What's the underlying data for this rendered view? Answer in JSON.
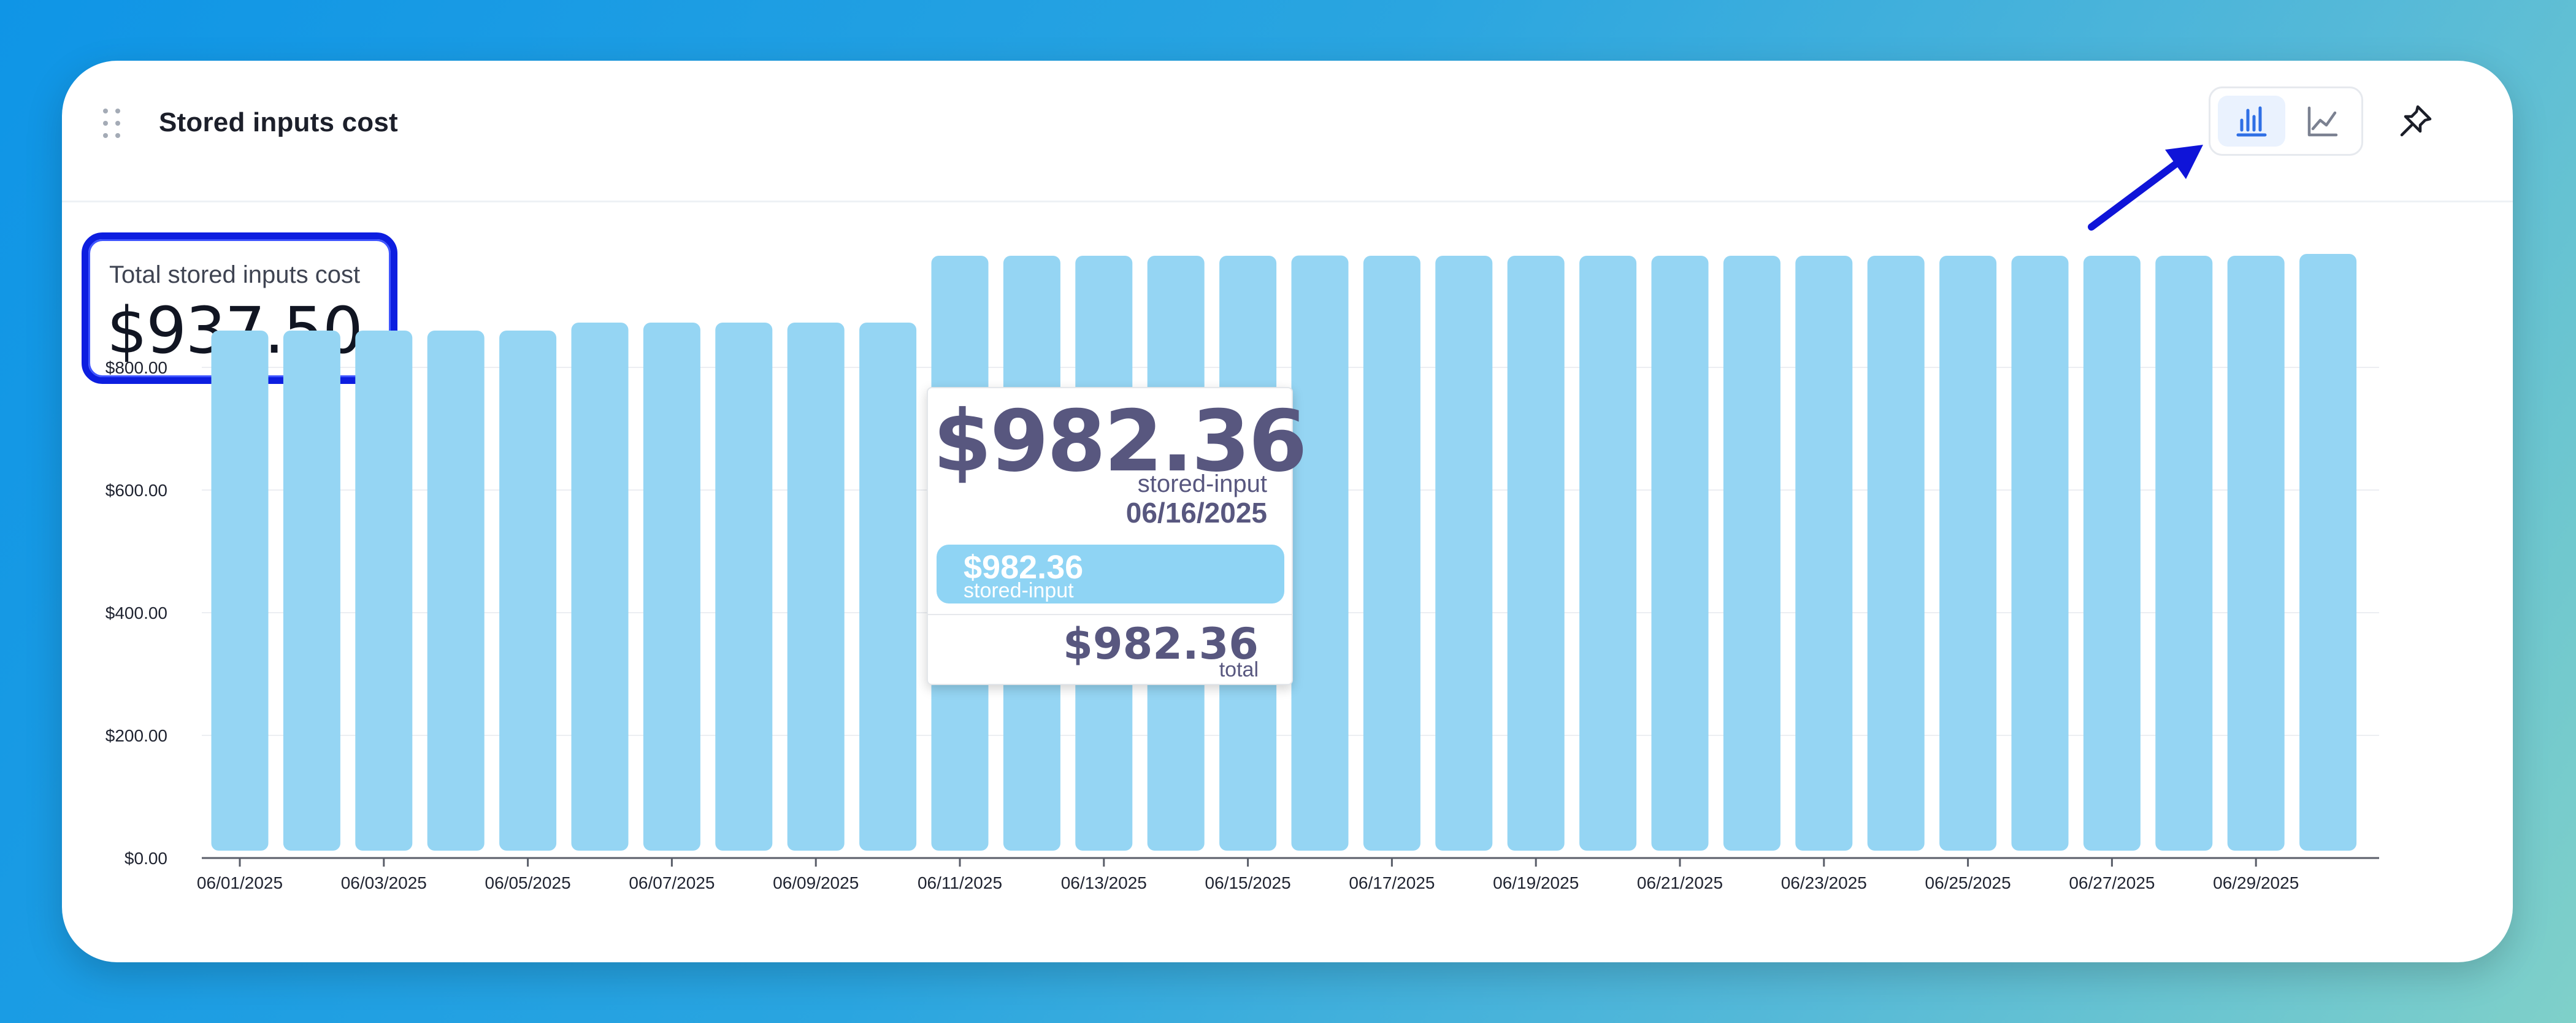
{
  "header": {
    "title": "Stored inputs cost",
    "drag_icon": "drag-handle-icon",
    "bar_chart_icon": "bar-chart-icon",
    "line_chart_icon": "line-chart-icon",
    "pin_icon": "pin-icon",
    "active_view": "bar"
  },
  "kpi": {
    "label": "Total stored inputs cost",
    "value": "$937.50"
  },
  "tooltip": {
    "value": "$982.36",
    "series": "stored-input",
    "date": "06/16/2025",
    "pill_value": "$982.36",
    "pill_series": "stored-input",
    "total_value": "$982.36",
    "total_label": "total"
  },
  "colors": {
    "bar": "#95d5f3",
    "tooltip_text": "#58577f",
    "highlight_border": "#0d1ee0",
    "active_icon": "#2f6fe5"
  },
  "chart_data": {
    "type": "bar",
    "categories": [
      "06/01/2025",
      "06/02/2025",
      "06/03/2025",
      "06/04/2025",
      "06/05/2025",
      "06/06/2025",
      "06/07/2025",
      "06/08/2025",
      "06/09/2025",
      "06/10/2025",
      "06/11/2025",
      "06/12/2025",
      "06/13/2025",
      "06/14/2025",
      "06/15/2025",
      "06/16/2025",
      "06/17/2025",
      "06/18/2025",
      "06/19/2025",
      "06/20/2025",
      "06/21/2025",
      "06/22/2025",
      "06/23/2025",
      "06/24/2025",
      "06/25/2025",
      "06/26/2025",
      "06/27/2025",
      "06/28/2025",
      "06/29/2025",
      "06/30/2025"
    ],
    "x_tick_labels": [
      "06/01/2025",
      "06/03/2025",
      "06/05/2025",
      "06/07/2025",
      "06/09/2025",
      "06/11/2025",
      "06/13/2025",
      "06/15/2025",
      "06/17/2025",
      "06/19/2025",
      "06/21/2025",
      "06/23/2025",
      "06/25/2025",
      "06/27/2025",
      "06/29/2025"
    ],
    "series": [
      {
        "name": "stored-input",
        "values": [
          860,
          860,
          860,
          860,
          860,
          873,
          873,
          873,
          873,
          873,
          982,
          982,
          982,
          982,
          982,
          982.36,
          982,
          982,
          982,
          982,
          982,
          982,
          982,
          982,
          982,
          982,
          982,
          982,
          982,
          985
        ]
      }
    ],
    "y_ticks": [
      "$0.00",
      "$200.00",
      "$400.00",
      "$600.00",
      "$800.00"
    ],
    "y_tick_values": [
      0,
      200,
      400,
      600,
      800
    ],
    "ylim": [
      0,
      1000
    ],
    "grid": true,
    "legend": "none"
  }
}
